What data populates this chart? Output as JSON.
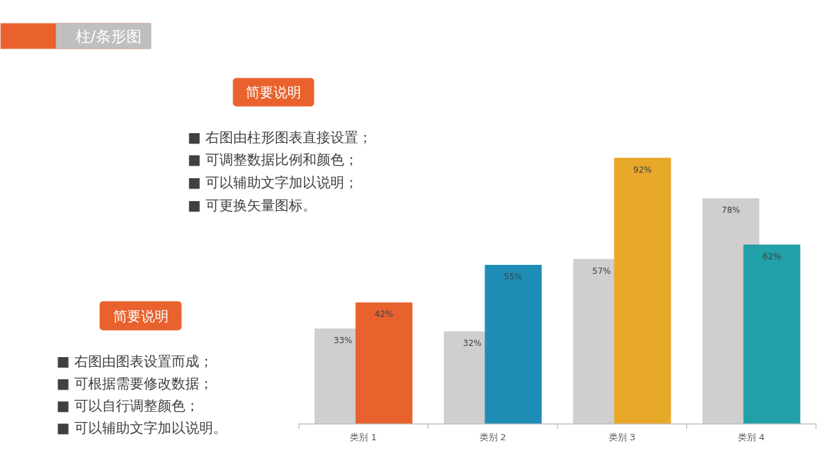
{
  "chart_data": {
    "type": "bar",
    "title": "柱/条形图",
    "categories": [
      "类别 1",
      "类别 2",
      "类别 3",
      "类别 4"
    ],
    "series": [
      {
        "color": "#d0cece",
        "values": [
          33,
          32,
          57,
          78
        ],
        "value_labels": [
          "33%",
          "32%",
          "57%",
          "78%"
        ]
      },
      {
        "colors": [
          "#e9612c",
          "#1f8eb6",
          "#e8a82a",
          "#22a0a8"
        ],
        "values": [
          42,
          55,
          92,
          62
        ],
        "value_labels": [
          "42%",
          "55%",
          "92%",
          "62%"
        ]
      }
    ],
    "annotations": [
      "简要说明",
      "■ 右图由柱形图表直接设置；",
      "■ 可调整数据比例和颜色；",
      "■ 可以辅助文字加以说明；",
      "■ 可更换矢量图标。",
      "简要说明",
      "■ 右图由图表设置而成；",
      "■ 可根据需要修改数据；",
      "■ 可以自行调整颜色；",
      "■ 可以辅助文字加以说明。"
    ]
  }
}
